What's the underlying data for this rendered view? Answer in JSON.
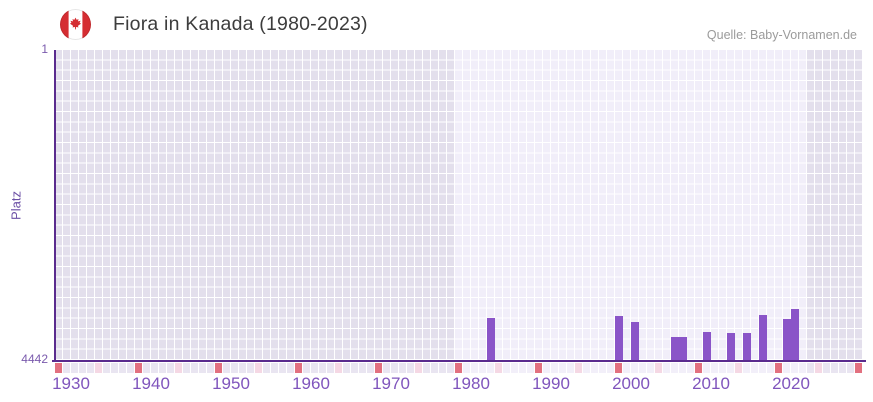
{
  "header": {
    "title": "Fiora in Kanada (1980-2023)",
    "source": "Quelle: Baby-Vornamen.de",
    "flag_icon": "canada-flag-icon"
  },
  "chart_data": {
    "type": "bar",
    "title": "Fiora in Kanada (1980-2023)",
    "xlabel": "",
    "ylabel": "Platz",
    "y_axis": {
      "top_label": "1",
      "bottom_label": "4442",
      "min": 1,
      "max": 4442,
      "inverted": true
    },
    "x_axis": {
      "start_year": 1928,
      "end_year": 2028,
      "tick_years": [
        1930,
        1940,
        1950,
        1960,
        1970,
        1980,
        1990,
        2000,
        2010,
        2020
      ]
    },
    "highlight_range": {
      "from": 1978,
      "to": 2021
    },
    "grid": "checkered",
    "legend": "none",
    "series": [
      {
        "name": "Platz",
        "points": [
          {
            "year": 1982,
            "rank": 3840
          },
          {
            "year": 1998,
            "rank": 3810
          },
          {
            "year": 2000,
            "rank": 3895
          },
          {
            "year": 2005,
            "rank": 4110
          },
          {
            "year": 2006,
            "rank": 4110
          },
          {
            "year": 2009,
            "rank": 4040
          },
          {
            "year": 2012,
            "rank": 4060
          },
          {
            "year": 2014,
            "rank": 4050
          },
          {
            "year": 2016,
            "rank": 3795
          },
          {
            "year": 2019,
            "rank": 3860
          },
          {
            "year": 2020,
            "rank": 3705
          }
        ]
      }
    ],
    "axis_markers": {
      "red_years": [
        1928,
        1938,
        1948,
        1958,
        1968,
        1978,
        1988,
        1998,
        2008,
        2018,
        2028
      ],
      "pink_years": [
        1933,
        1943,
        1953,
        1963,
        1973,
        1983,
        1993,
        2003,
        2013,
        2023
      ]
    },
    "colors": {
      "bar": "#8a54c8",
      "axis_line": "#5a2b8e",
      "grid_cell_light": "#f1eef9",
      "grid_cell_dark": "#e3dfec",
      "strip_cell_light": "#f2eff9",
      "strip_cell_dark": "#e9e5f1",
      "marker_red": "#e2707f",
      "marker_pink": "#f5d8e4",
      "tick_label": "#7a5aad",
      "x_tick_label": "#8055bd",
      "title": "#3d3d3d",
      "source": "#9b9b9b",
      "flag_red": "#d52d32"
    }
  }
}
